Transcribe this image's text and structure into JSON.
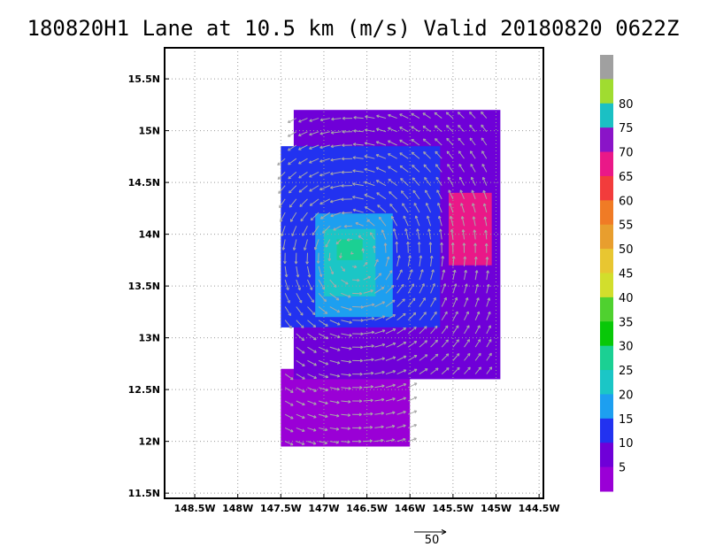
{
  "chart_data": {
    "type": "heatmap",
    "title": "180820H1 Lane at 10.5 km (m/s) Valid 20180820 0622Z",
    "x_ticks": [
      {
        "value": -148.5,
        "label": "148.5W"
      },
      {
        "value": -148.0,
        "label": "148W"
      },
      {
        "value": -147.5,
        "label": "147.5W"
      },
      {
        "value": -147.0,
        "label": "147W"
      },
      {
        "value": -146.5,
        "label": "146.5W"
      },
      {
        "value": -146.0,
        "label": "146W"
      },
      {
        "value": -145.5,
        "label": "145.5W"
      },
      {
        "value": -145.0,
        "label": "145W"
      },
      {
        "value": -144.5,
        "label": "144.5W"
      }
    ],
    "y_ticks": [
      {
        "value": 11.5,
        "label": "11.5N"
      },
      {
        "value": 12.0,
        "label": "12N"
      },
      {
        "value": 12.5,
        "label": "12.5N"
      },
      {
        "value": 13.0,
        "label": "13N"
      },
      {
        "value": 13.5,
        "label": "13.5N"
      },
      {
        "value": 14.0,
        "label": "14N"
      },
      {
        "value": 14.5,
        "label": "14.5N"
      },
      {
        "value": 15.0,
        "label": "15N"
      },
      {
        "value": 15.5,
        "label": "15.5N"
      }
    ],
    "xlim": [
      -148.85,
      -144.45
    ],
    "ylim": [
      11.45,
      15.8
    ],
    "grid": true,
    "colorbar": {
      "labels": [
        "5",
        "10",
        "15",
        "20",
        "25",
        "30",
        "35",
        "40",
        "45",
        "50",
        "55",
        "60",
        "65",
        "70",
        "75",
        "80"
      ],
      "colors": [
        "#9a00d6",
        "#6f00d8",
        "#2232f0",
        "#1d9ff0",
        "#1bc6c6",
        "#1bd093",
        "#08c808",
        "#4fd12f",
        "#d2de2c",
        "#e8c631",
        "#e89e2e",
        "#f07b25",
        "#f23c3c",
        "#ea1888",
        "#8a14c8",
        "#1bc0c4",
        "#a0dc30",
        "#a0a0a0"
      ]
    },
    "vector_reference": {
      "label": "50",
      "value": 50,
      "units": "m/s"
    },
    "regions": [
      {
        "level": "5",
        "lon": [
          -147.5,
          -146.0
        ],
        "lat": [
          11.95,
          12.7
        ]
      },
      {
        "level": "10",
        "lon": [
          -147.35,
          -144.95
        ],
        "lat": [
          12.6,
          15.2
        ]
      },
      {
        "level": "15",
        "lon": [
          -147.5,
          -145.65
        ],
        "lat": [
          13.1,
          14.85
        ]
      },
      {
        "level": "20",
        "lon": [
          -147.1,
          -146.2
        ],
        "lat": [
          13.2,
          14.2
        ]
      },
      {
        "level": "25",
        "lon": [
          -147.0,
          -146.4
        ],
        "lat": [
          13.4,
          14.05
        ]
      },
      {
        "level": "30",
        "lon": [
          -146.85,
          -146.55
        ],
        "lat": [
          13.75,
          13.95
        ]
      },
      {
        "level": "70",
        "lon": [
          -145.55,
          -145.05
        ],
        "lat": [
          13.7,
          14.4
        ]
      }
    ]
  }
}
